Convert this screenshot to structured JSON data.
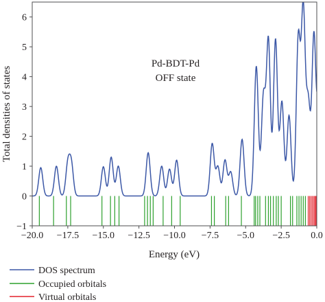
{
  "chart_data": {
    "type": "line",
    "title": "",
    "xlabel": "Energy (eV)",
    "ylabel": "Total densities of states",
    "annotation": [
      "Pd-BDT-Pd",
      "OFF state"
    ],
    "xlim": [
      -20.0,
      0.0
    ],
    "ylim": [
      -1,
      6.5
    ],
    "x_ticks": [
      -20.0,
      -17.5,
      -15.0,
      -12.5,
      -10.0,
      -7.5,
      -5.0,
      -2.5,
      0.0
    ],
    "x_tick_labels": [
      "−20.0",
      "−17.5",
      "−15.0",
      "−12.5",
      "−10.0",
      "−7.5",
      "−5.0",
      "−2.5",
      "0.0"
    ],
    "y_ticks": [
      -1,
      0,
      1,
      2,
      3,
      4,
      5,
      6
    ],
    "y_tick_labels": [
      "−1",
      "0",
      "1",
      "2",
      "3",
      "4",
      "5",
      "6"
    ],
    "grid": false,
    "legend_position": "bottom-left, below axes",
    "series": [
      {
        "name": "DOS spectrum",
        "kind": "spectrum",
        "color": "#3b57a6",
        "peak_width": 0.14,
        "peaks": [
          {
            "x": -19.4,
            "y": 0.95
          },
          {
            "x": -18.3,
            "y": 1.0
          },
          {
            "x": -17.5,
            "y": 1.05
          },
          {
            "x": -17.25,
            "y": 1.05
          },
          {
            "x": -15.0,
            "y": 0.98
          },
          {
            "x": -14.45,
            "y": 1.3
          },
          {
            "x": -13.95,
            "y": 1.0
          },
          {
            "x": -11.85,
            "y": 1.45
          },
          {
            "x": -10.9,
            "y": 1.0
          },
          {
            "x": -10.35,
            "y": 0.9
          },
          {
            "x": -9.85,
            "y": 1.2
          },
          {
            "x": -7.35,
            "y": 1.75
          },
          {
            "x": -6.95,
            "y": 0.98
          },
          {
            "x": -6.45,
            "y": 1.2
          },
          {
            "x": -6.05,
            "y": 0.8
          },
          {
            "x": -5.25,
            "y": 1.9
          },
          {
            "x": -4.25,
            "y": 4.35
          },
          {
            "x": -3.75,
            "y": 3.3
          },
          {
            "x": -3.4,
            "y": 5.2
          },
          {
            "x": -2.9,
            "y": 5.25
          },
          {
            "x": -2.45,
            "y": 3.15
          },
          {
            "x": -1.95,
            "y": 2.7
          },
          {
            "x": -1.3,
            "y": 5.25
          },
          {
            "x": -0.95,
            "y": 6.2
          },
          {
            "x": -0.6,
            "y": 3.1
          },
          {
            "x": -0.2,
            "y": 5.4
          },
          {
            "x": 0.2,
            "y": 4.3
          }
        ]
      },
      {
        "name": "Occupied orbitals",
        "kind": "sticks",
        "color": "#2ca02c",
        "positions": [
          -19.5,
          -18.5,
          -17.6,
          -17.3,
          -15.1,
          -14.5,
          -14.2,
          -13.9,
          -12.1,
          -11.9,
          -11.7,
          -11.5,
          -10.8,
          -10.2,
          -9.6,
          -7.4,
          -7.2,
          -6.4,
          -6.2,
          -5.3,
          -4.4,
          -4.3,
          -4.15,
          -4.0,
          -3.6,
          -3.4,
          -3.25,
          -3.05,
          -2.85,
          -2.7,
          -2.5,
          -1.85,
          -1.7,
          -1.4,
          -1.25,
          -1.1,
          -0.95,
          -0.8
        ]
      },
      {
        "name": "Virtual orbitals",
        "kind": "sticks",
        "color": "#e3202a",
        "positions": [
          -0.6,
          -0.5,
          -0.4,
          -0.3,
          -0.2,
          -0.12,
          -0.05
        ]
      }
    ],
    "sticks_range": [
      -1,
      0
    ]
  }
}
